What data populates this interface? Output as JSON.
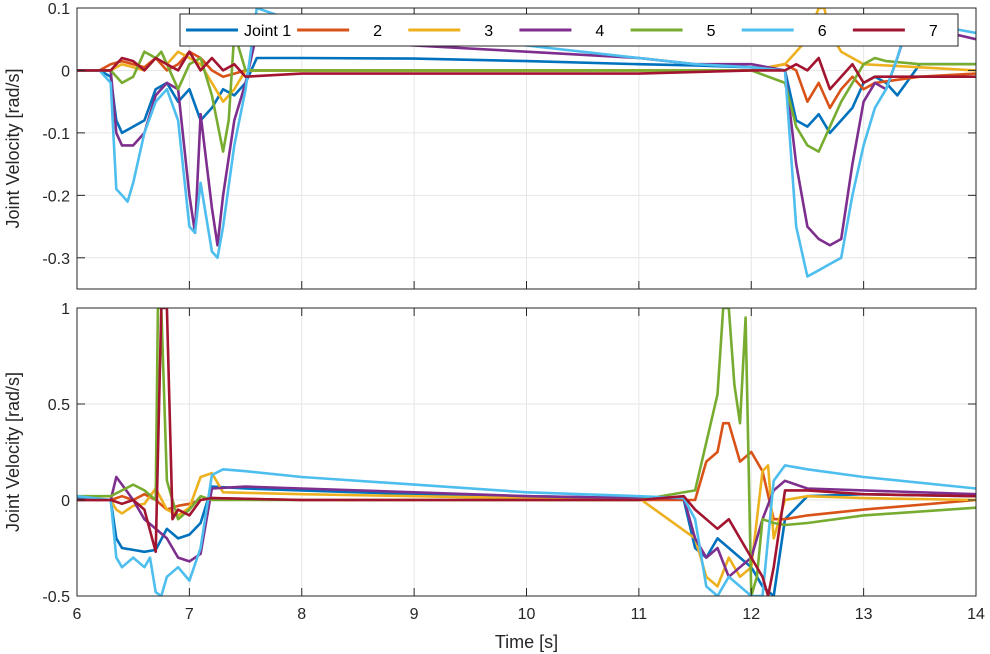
{
  "chart_data": [
    {
      "type": "line",
      "ylabel": "Joint Velocity [rad/s]",
      "xlabel": "",
      "xlim": [
        6,
        14
      ],
      "ylim": [
        -0.35,
        0.1
      ],
      "xticks": [
        6,
        7,
        8,
        9,
        10,
        11,
        12,
        13,
        14
      ],
      "yticks": [
        0.1,
        0,
        -0.1,
        -0.2,
        -0.3
      ],
      "ytick_labels": [
        "0.1",
        "0",
        "-0.1",
        "-0.2",
        "-0.3"
      ],
      "grid": true,
      "legend": {
        "placement": "top",
        "orientation": "horizontal",
        "entries": [
          "Joint 1",
          "2",
          "3",
          "4",
          "5",
          "6",
          "7"
        ]
      },
      "series": [
        {
          "name": "Joint 1",
          "color": "#0072BD",
          "x": [
            6.0,
            6.2,
            6.3,
            6.35,
            6.4,
            6.5,
            6.6,
            6.7,
            6.8,
            6.9,
            7.0,
            7.1,
            7.2,
            7.3,
            7.4,
            7.5,
            7.6,
            8.0,
            9.0,
            10.0,
            11.0,
            11.5,
            12.0,
            12.3,
            12.4,
            12.5,
            12.6,
            12.7,
            12.8,
            12.9,
            13.0,
            13.1,
            13.2,
            13.3,
            13.5,
            14.0
          ],
          "y": [
            0.0,
            0.0,
            -0.01,
            -0.08,
            -0.1,
            -0.09,
            -0.08,
            -0.03,
            -0.02,
            -0.05,
            -0.03,
            -0.08,
            -0.06,
            -0.03,
            -0.04,
            -0.02,
            0.02,
            0.02,
            0.019,
            0.015,
            0.01,
            0.008,
            0.005,
            0.0,
            -0.08,
            -0.09,
            -0.07,
            -0.1,
            -0.08,
            -0.06,
            -0.02,
            -0.01,
            -0.02,
            -0.04,
            0.01,
            0.01
          ]
        },
        {
          "name": "2",
          "color": "#D95319",
          "x": [
            6.0,
            6.2,
            6.3,
            6.4,
            6.5,
            6.6,
            6.7,
            6.8,
            6.9,
            7.0,
            7.1,
            7.2,
            7.3,
            7.4,
            7.5,
            8.0,
            9.0,
            10.0,
            11.0,
            12.0,
            12.3,
            12.4,
            12.5,
            12.6,
            12.7,
            12.8,
            12.9,
            13.0,
            13.1,
            13.5,
            14.0
          ],
          "y": [
            0.0,
            0.0,
            0.01,
            0.015,
            0.01,
            0.005,
            0.02,
            0.0,
            0.01,
            0.03,
            0.02,
            0.0,
            -0.01,
            -0.005,
            0.0,
            0.0,
            0.0,
            0.0,
            0.0,
            0.0,
            0.01,
            0.0,
            -0.05,
            -0.02,
            -0.06,
            -0.03,
            -0.01,
            -0.03,
            -0.02,
            -0.01,
            -0.005
          ]
        },
        {
          "name": "3",
          "color": "#EDB120",
          "x": [
            6.0,
            6.3,
            6.4,
            6.5,
            6.6,
            6.7,
            6.8,
            6.9,
            7.0,
            7.1,
            7.2,
            7.3,
            7.4,
            7.5,
            8.0,
            9.0,
            10.0,
            11.0,
            12.0,
            12.3,
            12.4,
            12.5,
            12.6,
            12.65,
            12.7,
            12.8,
            12.9,
            13.0,
            13.5,
            14.0
          ],
          "y": [
            0.0,
            0.0,
            0.01,
            0.005,
            0.0,
            0.02,
            0.01,
            0.03,
            0.02,
            0.01,
            -0.02,
            -0.05,
            -0.03,
            0.0,
            0.0,
            0.0,
            0.0,
            0.0,
            0.0,
            0.01,
            0.03,
            0.05,
            0.1,
            0.1,
            0.06,
            0.03,
            0.02,
            0.01,
            0.005,
            0.0
          ]
        },
        {
          "name": "4",
          "color": "#7E2F8E",
          "x": [
            6.0,
            6.3,
            6.35,
            6.4,
            6.5,
            6.6,
            6.7,
            6.8,
            6.9,
            7.0,
            7.05,
            7.1,
            7.2,
            7.25,
            7.3,
            7.4,
            7.5,
            7.6,
            8.0,
            9.0,
            10.0,
            11.0,
            11.5,
            12.0,
            12.3,
            12.4,
            12.5,
            12.6,
            12.7,
            12.8,
            12.9,
            13.0,
            13.1,
            13.2,
            13.3,
            13.4,
            14.0
          ],
          "y": [
            0.0,
            0.0,
            -0.1,
            -0.12,
            -0.12,
            -0.1,
            -0.04,
            -0.02,
            -0.03,
            -0.2,
            -0.26,
            -0.07,
            -0.22,
            -0.28,
            -0.2,
            -0.08,
            -0.02,
            0.06,
            0.05,
            0.04,
            0.03,
            0.02,
            0.01,
            0.01,
            0.0,
            -0.15,
            -0.25,
            -0.27,
            -0.28,
            -0.27,
            -0.15,
            -0.05,
            -0.02,
            -0.03,
            0.02,
            0.075,
            0.05
          ]
        },
        {
          "name": "5",
          "color": "#77AC30",
          "x": [
            6.0,
            6.3,
            6.4,
            6.5,
            6.6,
            6.7,
            6.75,
            6.8,
            6.9,
            7.0,
            7.1,
            7.2,
            7.3,
            7.35,
            7.4,
            7.5,
            8.0,
            9.0,
            10.0,
            11.0,
            12.0,
            12.3,
            12.4,
            12.5,
            12.6,
            12.7,
            12.8,
            12.9,
            13.0,
            13.1,
            13.2,
            13.5,
            14.0
          ],
          "y": [
            0.0,
            0.0,
            -0.02,
            -0.01,
            0.03,
            0.02,
            0.03,
            0.01,
            -0.03,
            0.01,
            0.02,
            -0.04,
            -0.13,
            -0.08,
            0.06,
            0.0,
            0.0,
            0.0,
            0.0,
            0.0,
            0.0,
            -0.02,
            -0.09,
            -0.12,
            -0.13,
            -0.09,
            -0.05,
            -0.02,
            0.01,
            0.02,
            0.015,
            0.01,
            0.01
          ]
        },
        {
          "name": "6",
          "color": "#4DBEEE",
          "x": [
            6.0,
            6.2,
            6.3,
            6.35,
            6.4,
            6.45,
            6.5,
            6.6,
            6.7,
            6.8,
            6.9,
            7.0,
            7.05,
            7.1,
            7.2,
            7.25,
            7.3,
            7.4,
            7.5,
            7.6,
            8.0,
            9.0,
            10.0,
            11.0,
            11.5,
            12.0,
            12.3,
            12.4,
            12.5,
            12.6,
            12.7,
            12.8,
            12.9,
            13.0,
            13.1,
            13.2,
            13.3,
            13.4,
            14.0
          ],
          "y": [
            0.0,
            0.0,
            -0.02,
            -0.19,
            -0.2,
            -0.21,
            -0.18,
            -0.1,
            -0.05,
            -0.03,
            -0.08,
            -0.25,
            -0.26,
            -0.18,
            -0.29,
            -0.3,
            -0.25,
            -0.12,
            -0.03,
            0.1,
            0.075,
            0.06,
            0.04,
            0.02,
            0.01,
            0.005,
            0.0,
            -0.25,
            -0.33,
            -0.32,
            -0.31,
            -0.3,
            -0.2,
            -0.12,
            -0.06,
            -0.03,
            0.02,
            0.08,
            0.06
          ]
        },
        {
          "name": "7",
          "color": "#A2142F",
          "x": [
            6.0,
            6.3,
            6.4,
            6.5,
            6.6,
            6.7,
            6.8,
            6.9,
            7.0,
            7.1,
            7.2,
            7.3,
            7.4,
            7.5,
            8.0,
            9.0,
            10.0,
            11.0,
            12.0,
            12.3,
            12.4,
            12.5,
            12.6,
            12.7,
            12.8,
            12.9,
            13.0,
            13.1,
            13.5,
            14.0
          ],
          "y": [
            0.0,
            0.0,
            0.02,
            0.015,
            0.0,
            0.02,
            0.01,
            0.0,
            0.03,
            0.0,
            0.02,
            0.0,
            0.01,
            -0.01,
            -0.005,
            -0.005,
            -0.005,
            -0.005,
            0.0,
            0.0,
            0.01,
            0.0,
            0.02,
            -0.03,
            -0.01,
            0.01,
            -0.02,
            -0.01,
            -0.01,
            -0.01
          ]
        }
      ]
    },
    {
      "type": "line",
      "ylabel": "Joint Velocity [rad/s]",
      "xlabel": "Time [s]",
      "xlim": [
        6,
        14
      ],
      "ylim": [
        -0.5,
        1
      ],
      "xticks": [
        6,
        7,
        8,
        9,
        10,
        11,
        12,
        13,
        14
      ],
      "xtick_labels": [
        "6",
        "7",
        "8",
        "9",
        "10",
        "11",
        "12",
        "13",
        "14"
      ],
      "yticks": [
        1,
        0.5,
        0,
        -0.5
      ],
      "ytick_labels": [
        "1",
        "0.5",
        "0",
        "-0.5"
      ],
      "grid": true,
      "series": [
        {
          "name": "Joint 1",
          "color": "#0072BD",
          "x": [
            6.0,
            6.3,
            6.35,
            6.4,
            6.5,
            6.6,
            6.7,
            6.8,
            6.9,
            7.0,
            7.1,
            7.2,
            7.5,
            8.0,
            9.0,
            10.0,
            11.0,
            11.4,
            11.5,
            11.6,
            11.7,
            11.8,
            11.9,
            12.0,
            12.1,
            12.2,
            12.3,
            12.5,
            13.0,
            14.0
          ],
          "y": [
            0.01,
            0.0,
            -0.2,
            -0.25,
            -0.26,
            -0.27,
            -0.26,
            -0.15,
            -0.2,
            -0.18,
            -0.12,
            0.07,
            0.06,
            0.05,
            0.03,
            0.02,
            0.01,
            0.0,
            -0.25,
            -0.3,
            -0.2,
            -0.25,
            -0.3,
            -0.35,
            -0.45,
            -0.5,
            -0.1,
            0.02,
            0.03,
            0.02
          ]
        },
        {
          "name": "2",
          "color": "#D95319",
          "x": [
            6.0,
            6.3,
            6.4,
            6.5,
            6.6,
            6.7,
            6.8,
            6.9,
            7.0,
            7.1,
            7.2,
            8.0,
            9.0,
            10.0,
            11.0,
            11.5,
            11.6,
            11.7,
            11.75,
            11.8,
            11.85,
            11.9,
            12.0,
            12.1,
            12.2,
            12.3,
            12.5,
            13.0,
            14.0
          ],
          "y": [
            0.0,
            0.0,
            0.02,
            0.0,
            0.03,
            0.0,
            -0.05,
            -0.03,
            -0.02,
            0.0,
            0.01,
            0.0,
            0.0,
            0.0,
            0.0,
            0.0,
            0.2,
            0.25,
            0.4,
            0.4,
            0.3,
            0.2,
            0.25,
            0.15,
            -0.1,
            -0.1,
            -0.08,
            -0.05,
            0.0
          ]
        },
        {
          "name": "3",
          "color": "#EDB120",
          "x": [
            6.0,
            6.3,
            6.35,
            6.4,
            6.5,
            6.6,
            6.7,
            6.8,
            6.9,
            7.0,
            7.1,
            7.2,
            7.3,
            8.0,
            9.0,
            10.0,
            11.0,
            11.5,
            11.6,
            11.7,
            11.8,
            11.9,
            12.0,
            12.1,
            12.15,
            12.2,
            12.3,
            12.5,
            13.0,
            14.0
          ],
          "y": [
            0.0,
            0.0,
            -0.05,
            -0.07,
            -0.03,
            -0.02,
            0.06,
            -0.05,
            -0.08,
            -0.04,
            0.12,
            0.14,
            0.04,
            0.03,
            0.02,
            0.01,
            0.01,
            -0.2,
            -0.4,
            -0.45,
            -0.3,
            -0.4,
            -0.35,
            0.15,
            0.18,
            -0.2,
            0.0,
            0.02,
            0.01,
            0.0
          ]
        },
        {
          "name": "4",
          "color": "#7E2F8E",
          "x": [
            6.0,
            6.3,
            6.35,
            6.4,
            6.5,
            6.6,
            6.7,
            6.8,
            6.9,
            7.0,
            7.1,
            7.2,
            7.5,
            8.0,
            9.0,
            10.0,
            11.0,
            11.4,
            11.5,
            11.6,
            11.7,
            11.8,
            11.9,
            12.0,
            12.1,
            12.2,
            12.3,
            12.5,
            13.0,
            14.0
          ],
          "y": [
            0.0,
            0.0,
            0.12,
            0.08,
            0.0,
            -0.1,
            -0.15,
            -0.2,
            -0.3,
            -0.32,
            -0.28,
            0.06,
            0.07,
            0.06,
            0.04,
            0.02,
            0.01,
            0.01,
            -0.2,
            -0.3,
            -0.25,
            -0.4,
            -0.35,
            -0.3,
            -0.1,
            0.05,
            0.1,
            0.06,
            0.05,
            0.03
          ]
        },
        {
          "name": "5",
          "color": "#77AC30",
          "x": [
            6.0,
            6.3,
            6.4,
            6.5,
            6.6,
            6.7,
            6.72,
            6.75,
            6.8,
            6.9,
            7.0,
            7.1,
            7.2,
            8.0,
            9.0,
            10.0,
            11.0,
            11.5,
            11.6,
            11.7,
            11.75,
            11.8,
            11.85,
            11.9,
            11.95,
            12.0,
            12.05,
            12.1,
            12.2,
            12.3,
            12.5,
            13.0,
            14.0
          ],
          "y": [
            0.02,
            0.02,
            0.05,
            0.08,
            0.05,
            0.0,
            1.0,
            1.0,
            0.1,
            -0.1,
            -0.05,
            0.02,
            0.0,
            0.0,
            0.0,
            0.0,
            0.0,
            0.05,
            0.3,
            0.55,
            1.0,
            1.0,
            0.6,
            0.4,
            0.95,
            -0.5,
            -0.4,
            -0.1,
            -0.12,
            -0.13,
            -0.12,
            -0.08,
            -0.04
          ]
        },
        {
          "name": "6",
          "color": "#4DBEEE",
          "x": [
            6.0,
            6.3,
            6.35,
            6.4,
            6.5,
            6.6,
            6.65,
            6.7,
            6.75,
            6.8,
            6.9,
            7.0,
            7.1,
            7.2,
            7.3,
            7.5,
            8.0,
            9.0,
            10.0,
            11.0,
            11.4,
            11.5,
            11.6,
            11.7,
            11.8,
            11.9,
            12.0,
            12.1,
            12.2,
            12.3,
            12.5,
            13.0,
            14.0
          ],
          "y": [
            0.02,
            0.0,
            -0.3,
            -0.35,
            -0.3,
            -0.35,
            -0.3,
            -0.48,
            -0.5,
            -0.4,
            -0.35,
            -0.42,
            -0.25,
            0.13,
            0.16,
            0.15,
            0.12,
            0.08,
            0.04,
            0.02,
            0.01,
            -0.1,
            -0.45,
            -0.5,
            -0.4,
            -0.45,
            -0.5,
            -0.5,
            0.1,
            0.18,
            0.16,
            0.12,
            0.06
          ]
        },
        {
          "name": "7",
          "color": "#A2142F",
          "x": [
            6.0,
            6.3,
            6.4,
            6.5,
            6.6,
            6.7,
            6.75,
            6.8,
            6.85,
            6.9,
            7.0,
            7.1,
            7.2,
            8.0,
            9.0,
            10.0,
            11.0,
            11.4,
            11.5,
            11.6,
            11.7,
            11.8,
            11.9,
            12.0,
            12.1,
            12.15,
            12.2,
            12.3,
            12.5,
            13.0,
            14.0
          ],
          "y": [
            0.0,
            0.0,
            -0.02,
            0.0,
            -0.05,
            -0.27,
            1.0,
            1.0,
            -0.1,
            -0.05,
            -0.08,
            0.0,
            0.01,
            0.0,
            0.0,
            0.0,
            0.0,
            0.02,
            -0.05,
            -0.1,
            -0.15,
            -0.1,
            -0.2,
            -0.3,
            -0.4,
            -0.5,
            -0.35,
            0.05,
            0.05,
            0.03,
            0.02
          ]
        }
      ]
    }
  ]
}
